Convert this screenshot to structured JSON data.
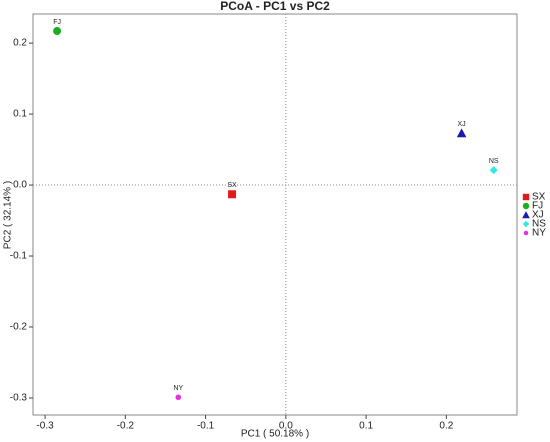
{
  "chart_data": {
    "type": "scatter",
    "title": "PCoA - PC1 vs PC2",
    "x_label": "PC1 ( 50.18% )",
    "y_label": "PC2 ( 32.14% )",
    "xlim": [
      -0.315,
      0.288
    ],
    "ylim": [
      -0.324,
      0.241
    ],
    "xticks": [
      -0.3,
      -0.2,
      -0.1,
      {
        "value": 0,
        "label": "0.0"
      },
      0.1,
      0.2
    ],
    "yticks": [
      -0.3,
      -0.2,
      -0.1,
      {
        "value": 0,
        "label": "0.0"
      },
      0.1,
      0.2
    ],
    "zero_lines": true,
    "legend": "right",
    "series": [
      {
        "name": "SX",
        "color": "#e31a1c",
        "marker": "square",
        "x": [
          -0.067
        ],
        "values": [
          -0.013
        ]
      },
      {
        "name": "FJ",
        "color": "#1aaf1a",
        "marker": "circle",
        "x": [
          -0.285
        ],
        "values": [
          0.217
        ]
      },
      {
        "name": "XJ",
        "color": "#1a1ab0",
        "marker": "triangle",
        "x": [
          0.219
        ],
        "values": [
          0.073
        ]
      },
      {
        "name": "NS",
        "color": "#33e6e6",
        "marker": "diamond",
        "x": [
          0.259
        ],
        "values": [
          0.021
        ]
      },
      {
        "name": "NY",
        "color": "#e62ee6",
        "marker": "dot",
        "x": [
          -0.134
        ],
        "values": [
          -0.299
        ]
      }
    ]
  }
}
